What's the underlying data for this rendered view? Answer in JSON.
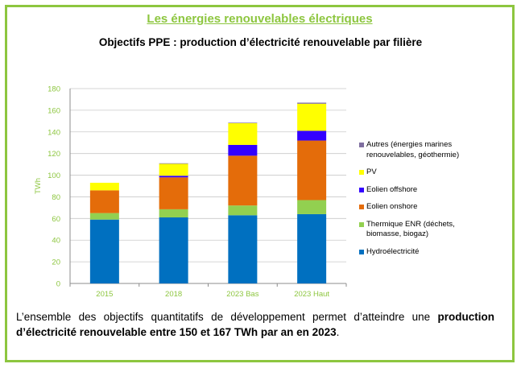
{
  "header": {
    "title": "Les énergies renouvelables électriques"
  },
  "chart_data": {
    "type": "bar",
    "stacked": true,
    "title": "Objectifs PPE : production d’électricité renouvelable par filière",
    "xlabel": "",
    "ylabel": "TWh",
    "ylim": [
      0,
      180
    ],
    "yticks": [
      0,
      20,
      40,
      60,
      80,
      100,
      120,
      140,
      160,
      180
    ],
    "grid": true,
    "legend_position": "right",
    "categories": [
      "2015",
      "2018",
      "2023 Bas",
      "2023 Haut"
    ],
    "series": [
      {
        "name": "Hydroélectricité",
        "color": "#0070c0",
        "values": [
          59,
          61,
          63,
          64
        ]
      },
      {
        "name": "Thermique ENR (déchets, biomasse, biogaz)",
        "color": "#92d050",
        "values": [
          6,
          7.5,
          9,
          13
        ]
      },
      {
        "name": "Eolien onshore",
        "color": "#e46c0a",
        "values": [
          21,
          29.5,
          46,
          55
        ]
      },
      {
        "name": "Eolien offshore",
        "color": "#3300ff",
        "values": [
          0,
          1.5,
          10,
          9
        ]
      },
      {
        "name": "PV",
        "color": "#ffff00",
        "values": [
          7,
          11,
          20,
          25
        ]
      },
      {
        "name": "Autres (énergies marines renouvelables, géothermie)",
        "color": "#7f6fa0",
        "values": [
          0,
          0.5,
          0.5,
          1
        ]
      }
    ]
  },
  "legend": {
    "items": [
      {
        "label": "Autres (énergies marines renouvelables, géothermie)",
        "color": "#7f6fa0"
      },
      {
        "label": "PV",
        "color": "#ffff00"
      },
      {
        "label": "Eolien offshore",
        "color": "#3300ff"
      },
      {
        "label": "Eolien onshore",
        "color": "#e46c0a"
      },
      {
        "label": "Thermique ENR (déchets, biomasse, biogaz)",
        "color": "#92d050"
      },
      {
        "label": "Hydroélectricité",
        "color": "#0070c0"
      }
    ]
  },
  "caption": {
    "text_before": "L’ensemble des objectifs quantitatifs de développement permet d’atteindre une ",
    "text_bold": "production d’électricité renouvelable entre 150 et 167 TWh par an en 2023",
    "text_after": "."
  }
}
